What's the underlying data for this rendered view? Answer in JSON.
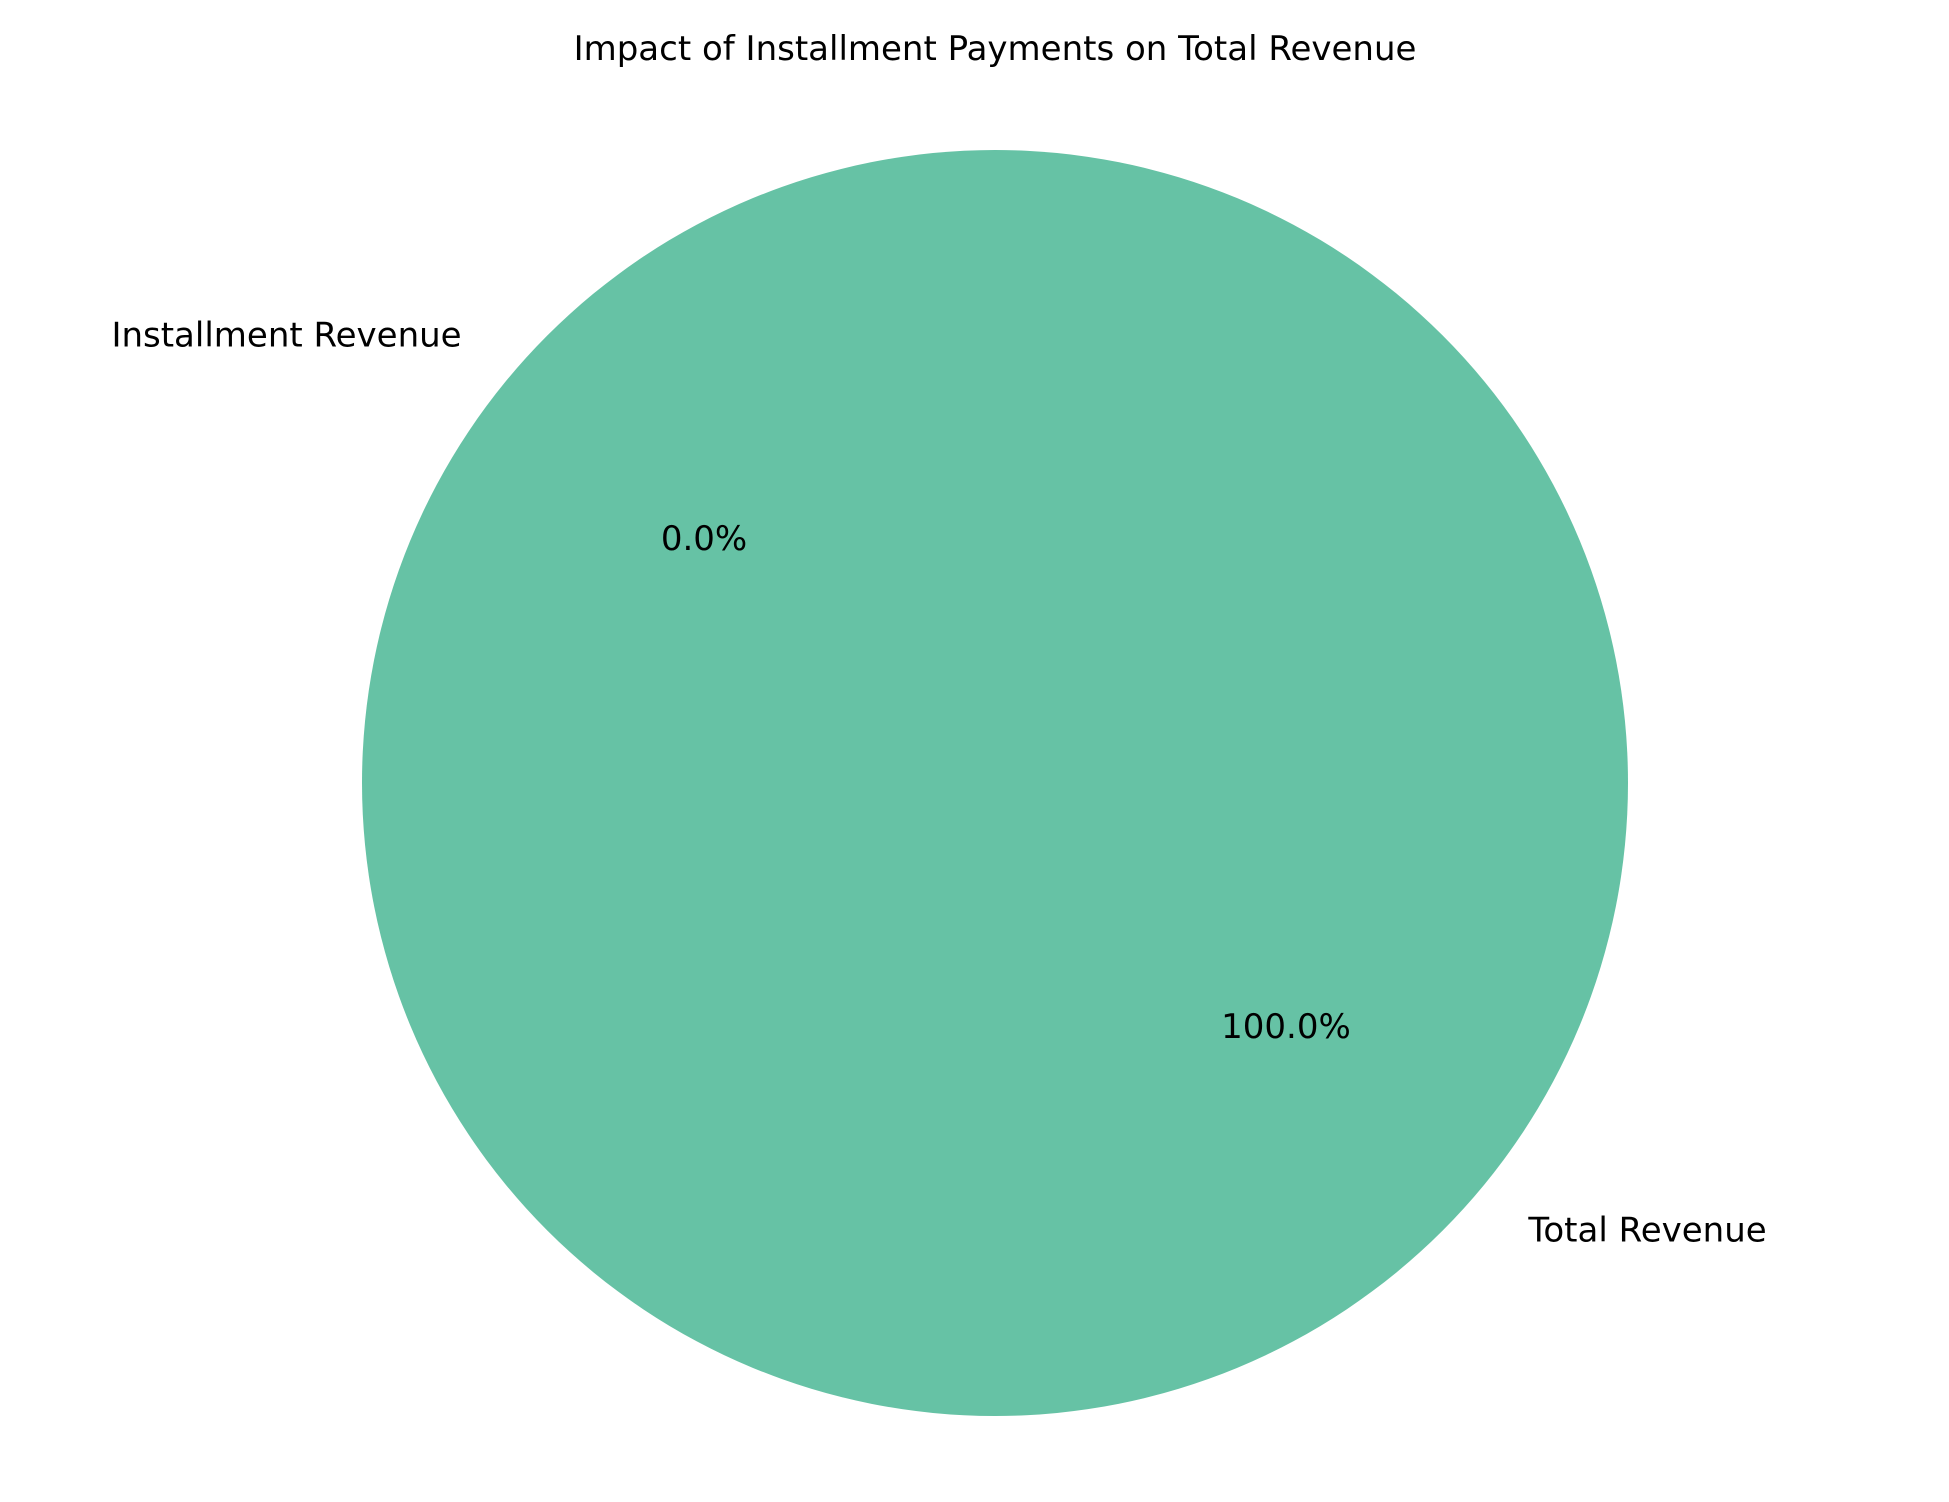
{
  "chart_data": {
    "type": "pie",
    "title": "Impact of Installment Payments on Total Revenue",
    "slices": [
      {
        "label": "Installment Revenue",
        "value": 0.0,
        "percent_label": "0.0%",
        "color": "#66c2a5"
      },
      {
        "label": "Total Revenue",
        "value": 100.0,
        "percent_label": "100.0%",
        "color": "#66c2a5"
      }
    ],
    "legend": "none"
  }
}
